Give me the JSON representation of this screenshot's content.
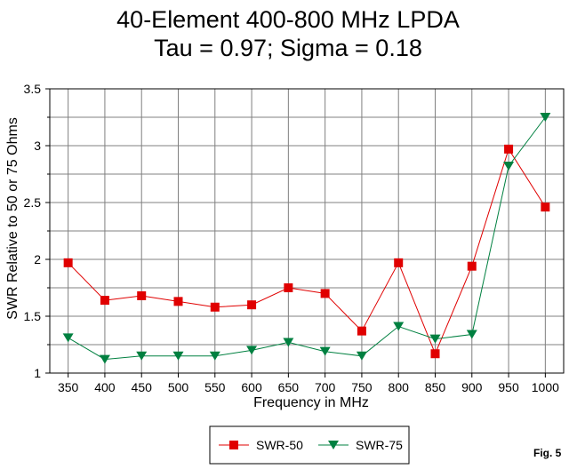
{
  "chart_data": {
    "type": "line",
    "title_lines": [
      "40-Element 400-800 MHz LPDA",
      "Tau = 0.97; Sigma = 0.18"
    ],
    "xlabel": "Frequency in MHz",
    "ylabel": "SWR Relative to 50 or 75 Ohms",
    "x": [
      350,
      400,
      450,
      500,
      550,
      600,
      650,
      700,
      750,
      800,
      850,
      900,
      950,
      1000
    ],
    "x_tick_labels": [
      "350",
      "400",
      "450",
      "500",
      "550",
      "600",
      "650",
      "700",
      "750",
      "800",
      "850",
      "900",
      "950",
      "1000"
    ],
    "ylim": [
      1,
      3.5
    ],
    "y_ticks": [
      1,
      1.5,
      2,
      2.5,
      3,
      3.5
    ],
    "y_tick_labels": [
      "1",
      "1.5",
      "2",
      "2.5",
      "3",
      "3.5"
    ],
    "y_minor_step": 0.25,
    "grid": true,
    "series": [
      {
        "name": "SWR-50",
        "color": "#e00000",
        "marker": "square",
        "values": [
          1.97,
          1.64,
          1.68,
          1.63,
          1.58,
          1.6,
          1.75,
          1.7,
          1.37,
          1.97,
          1.17,
          1.94,
          2.97,
          2.46
        ]
      },
      {
        "name": "SWR-75",
        "color": "#008040",
        "marker": "triangle-down",
        "values": [
          1.31,
          1.12,
          1.15,
          1.15,
          1.15,
          1.2,
          1.27,
          1.19,
          1.15,
          1.41,
          1.3,
          1.34,
          2.82,
          3.25
        ]
      }
    ],
    "legend_position": "bottom-center",
    "figure_label": "Fig. 5"
  }
}
